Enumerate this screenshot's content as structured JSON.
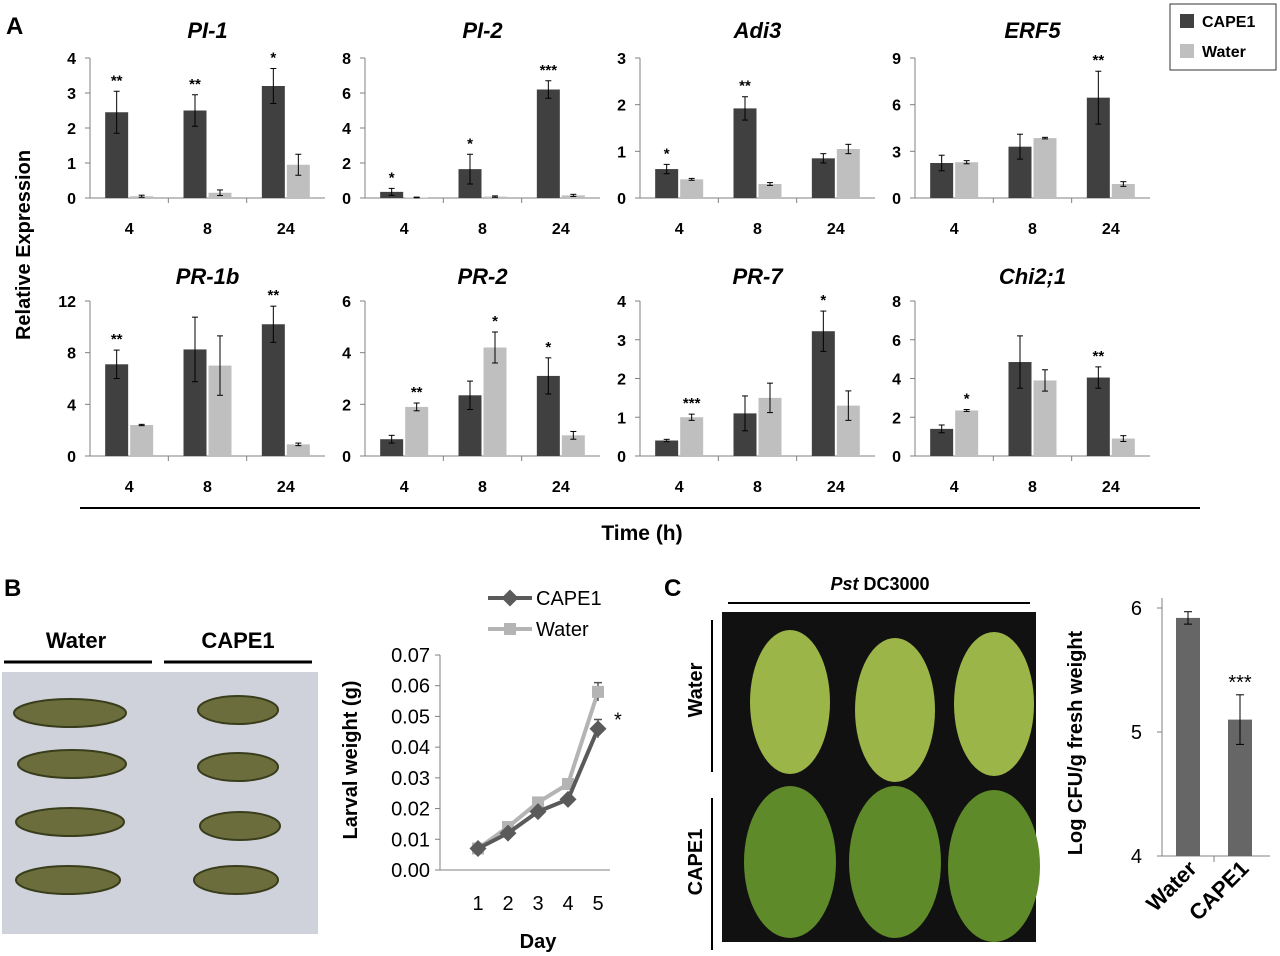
{
  "panel_labels": {
    "a": "A",
    "b": "B",
    "c": "C"
  },
  "colors": {
    "cape1": "#404040",
    "water": "#bfbfbf",
    "axis": "#808080",
    "text": "#000000",
    "line_cape1": "#5a5a5a",
    "line_water": "#b4b4b4",
    "bar_c": "#666666",
    "photo_bg_b": "#cfd2da",
    "photo_bg_c": "#111111",
    "leaf_water": "#9cb548",
    "leaf_cape1": "#5f8a2a",
    "larva": "#6b6e3c"
  },
  "panelA": {
    "ylabel": "Relative Expression",
    "xlabel": "Time (h)",
    "legend": [
      "CAPE1",
      "Water"
    ],
    "categories": [
      "4",
      "8",
      "24"
    ],
    "charts": [
      {
        "title": "PI-1",
        "ymax": 4,
        "ticks": [
          0,
          1,
          2,
          3,
          4
        ],
        "cape1": [
          2.45,
          2.5,
          3.2
        ],
        "cape1_err": [
          0.6,
          0.45,
          0.5
        ],
        "water": [
          0.05,
          0.15,
          0.95
        ],
        "water_err": [
          0.03,
          0.08,
          0.3
        ],
        "sig": [
          "**",
          "**",
          "*"
        ],
        "sig_on": [
          "c",
          "c",
          "c"
        ]
      },
      {
        "title": "PI-2",
        "ymax": 8,
        "ticks": [
          0,
          2,
          4,
          6,
          8
        ],
        "cape1": [
          0.35,
          1.65,
          6.2
        ],
        "cape1_err": [
          0.2,
          0.85,
          0.5
        ],
        "water": [
          0.03,
          0.08,
          0.15
        ],
        "water_err": [
          0.02,
          0.04,
          0.06
        ],
        "sig": [
          "*",
          "*",
          "***"
        ],
        "sig_on": [
          "c",
          "c",
          "c"
        ]
      },
      {
        "title": "Adi3",
        "ymax": 3,
        "ticks": [
          0,
          1,
          2,
          3
        ],
        "cape1": [
          0.62,
          1.92,
          0.85
        ],
        "cape1_err": [
          0.1,
          0.25,
          0.1
        ],
        "water": [
          0.4,
          0.3,
          1.05
        ],
        "water_err": [
          0.02,
          0.03,
          0.1
        ],
        "sig": [
          "*",
          "**",
          ""
        ],
        "sig_on": [
          "c",
          "c",
          "c"
        ]
      },
      {
        "title": "ERF5",
        "ymax": 9,
        "ticks": [
          0,
          3,
          6,
          9
        ],
        "cape1": [
          2.25,
          3.3,
          6.45
        ],
        "cape1_err": [
          0.5,
          0.8,
          1.7
        ],
        "water": [
          2.3,
          3.85,
          0.9
        ],
        "water_err": [
          0.1,
          0.05,
          0.15
        ],
        "sig": [
          "",
          "",
          "**"
        ],
        "sig_on": [
          "c",
          "c",
          "c"
        ]
      },
      {
        "title": "PR-1b",
        "ymax": 12,
        "ticks": [
          0,
          4,
          8,
          12
        ],
        "cape1": [
          7.1,
          8.25,
          10.2
        ],
        "cape1_err": [
          1.1,
          2.5,
          1.4
        ],
        "water": [
          2.4,
          7.0,
          0.9
        ],
        "water_err": [
          0.05,
          2.3,
          0.1
        ],
        "sig": [
          "**",
          "",
          "**"
        ],
        "sig_on": [
          "c",
          "c",
          "c"
        ]
      },
      {
        "title": "PR-2",
        "ymax": 6,
        "ticks": [
          0,
          2,
          4,
          6
        ],
        "cape1": [
          0.65,
          2.35,
          3.1
        ],
        "cape1_err": [
          0.15,
          0.55,
          0.7
        ],
        "water": [
          1.9,
          4.2,
          0.8
        ],
        "water_err": [
          0.15,
          0.6,
          0.15
        ],
        "sig": [
          "**",
          "*",
          "*"
        ],
        "sig_on": [
          "w",
          "w",
          "c"
        ]
      },
      {
        "title": "PR-7",
        "ymax": 4,
        "ticks": [
          0,
          1,
          2,
          3,
          4
        ],
        "cape1": [
          0.4,
          1.1,
          3.22
        ],
        "cape1_err": [
          0.03,
          0.45,
          0.52
        ],
        "water": [
          1.0,
          1.5,
          1.3
        ],
        "water_err": [
          0.08,
          0.38,
          0.38
        ],
        "sig": [
          "***",
          "",
          "*"
        ],
        "sig_on": [
          "w",
          "w",
          "c"
        ]
      },
      {
        "title": "Chi2;1",
        "ymax": 8,
        "ticks": [
          0,
          2,
          4,
          6,
          8
        ],
        "cape1": [
          1.4,
          4.85,
          4.05
        ],
        "cape1_err": [
          0.2,
          1.35,
          0.55
        ],
        "water": [
          2.35,
          3.9,
          0.9
        ],
        "water_err": [
          0.05,
          0.55,
          0.15
        ],
        "sig": [
          "",
          "",
          "**"
        ],
        "sig_on": [
          "c",
          "c",
          "c"
        ],
        "sig_water": [
          "*",
          "",
          ""
        ]
      }
    ]
  },
  "panelB": {
    "photo_labels": {
      "left": "Water",
      "right": "CAPE1"
    },
    "legend": [
      "CAPE1",
      "Water"
    ],
    "ylabel": "Larval weight (g)",
    "xlabel": "Day",
    "xticks": [
      "1",
      "2",
      "3",
      "4",
      "5"
    ],
    "yticks": [
      "0.00",
      "0.01",
      "0.02",
      "0.03",
      "0.04",
      "0.05",
      "0.06",
      "0.07"
    ],
    "ymax": 0.07,
    "cape1": [
      0.007,
      0.012,
      0.019,
      0.023,
      0.046
    ],
    "water": [
      0.007,
      0.014,
      0.022,
      0.028,
      0.058
    ],
    "cape1_err": [
      0,
      0,
      0,
      0,
      0.003
    ],
    "water_err": [
      0,
      0,
      0,
      0,
      0.003
    ],
    "sig": "*"
  },
  "panelC": {
    "photo_title_italic": "Pst",
    "photo_title_rest": " DC3000",
    "row_labels": {
      "top": "Water",
      "bottom": "CAPE1"
    },
    "ylabel": "Log CFU/g fresh weight",
    "categories": [
      "Water",
      "CAPE1"
    ],
    "values": [
      5.92,
      5.1
    ],
    "errors": [
      0.05,
      0.2
    ],
    "ymin": 4,
    "ymax": 6,
    "yticks": [
      "4",
      "5",
      "6"
    ],
    "sig": [
      "",
      "***"
    ]
  },
  "chart_data": [
    {
      "type": "bar",
      "title": "PI-1",
      "categories": [
        "4",
        "8",
        "24"
      ],
      "ylabel": "Relative Expression",
      "xlabel": "Time (h)",
      "ylim": [
        0,
        4
      ],
      "series": [
        {
          "name": "CAPE1",
          "values": [
            2.45,
            2.5,
            3.2
          ]
        },
        {
          "name": "Water",
          "values": [
            0.05,
            0.15,
            0.95
          ]
        }
      ]
    },
    {
      "type": "bar",
      "title": "PI-2",
      "categories": [
        "4",
        "8",
        "24"
      ],
      "ylim": [
        0,
        8
      ],
      "series": [
        {
          "name": "CAPE1",
          "values": [
            0.35,
            1.65,
            6.2
          ]
        },
        {
          "name": "Water",
          "values": [
            0.03,
            0.08,
            0.15
          ]
        }
      ]
    },
    {
      "type": "bar",
      "title": "Adi3",
      "categories": [
        "4",
        "8",
        "24"
      ],
      "ylim": [
        0,
        3
      ],
      "series": [
        {
          "name": "CAPE1",
          "values": [
            0.62,
            1.92,
            0.85
          ]
        },
        {
          "name": "Water",
          "values": [
            0.4,
            0.3,
            1.05
          ]
        }
      ]
    },
    {
      "type": "bar",
      "title": "ERF5",
      "categories": [
        "4",
        "8",
        "24"
      ],
      "ylim": [
        0,
        9
      ],
      "series": [
        {
          "name": "CAPE1",
          "values": [
            2.25,
            3.3,
            6.45
          ]
        },
        {
          "name": "Water",
          "values": [
            2.3,
            3.85,
            0.9
          ]
        }
      ]
    },
    {
      "type": "bar",
      "title": "PR-1b",
      "categories": [
        "4",
        "8",
        "24"
      ],
      "ylim": [
        0,
        12
      ],
      "series": [
        {
          "name": "CAPE1",
          "values": [
            7.1,
            8.25,
            10.2
          ]
        },
        {
          "name": "Water",
          "values": [
            2.4,
            7.0,
            0.9
          ]
        }
      ]
    },
    {
      "type": "bar",
      "title": "PR-2",
      "categories": [
        "4",
        "8",
        "24"
      ],
      "ylim": [
        0,
        6
      ],
      "series": [
        {
          "name": "CAPE1",
          "values": [
            0.65,
            2.35,
            3.1
          ]
        },
        {
          "name": "Water",
          "values": [
            1.9,
            4.2,
            0.8
          ]
        }
      ]
    },
    {
      "type": "bar",
      "title": "PR-7",
      "categories": [
        "4",
        "8",
        "24"
      ],
      "ylim": [
        0,
        4
      ],
      "series": [
        {
          "name": "CAPE1",
          "values": [
            0.4,
            1.1,
            3.22
          ]
        },
        {
          "name": "Water",
          "values": [
            1.0,
            1.5,
            1.3
          ]
        }
      ]
    },
    {
      "type": "bar",
      "title": "Chi2;1",
      "categories": [
        "4",
        "8",
        "24"
      ],
      "ylim": [
        0,
        8
      ],
      "series": [
        {
          "name": "CAPE1",
          "values": [
            1.4,
            4.85,
            4.05
          ]
        },
        {
          "name": "Water",
          "values": [
            2.35,
            3.9,
            0.9
          ]
        }
      ]
    },
    {
      "type": "line",
      "x": [
        1,
        2,
        3,
        4,
        5
      ],
      "xlabel": "Day",
      "ylabel": "Larval weight (g)",
      "ylim": [
        0,
        0.07
      ],
      "series": [
        {
          "name": "CAPE1",
          "values": [
            0.007,
            0.012,
            0.019,
            0.023,
            0.046
          ]
        },
        {
          "name": "Water",
          "values": [
            0.007,
            0.014,
            0.022,
            0.028,
            0.058
          ]
        }
      ]
    },
    {
      "type": "bar",
      "categories": [
        "Water",
        "CAPE1"
      ],
      "values": [
        5.92,
        5.1
      ],
      "ylabel": "Log CFU/g fresh weight",
      "ylim": [
        4,
        6
      ]
    }
  ]
}
